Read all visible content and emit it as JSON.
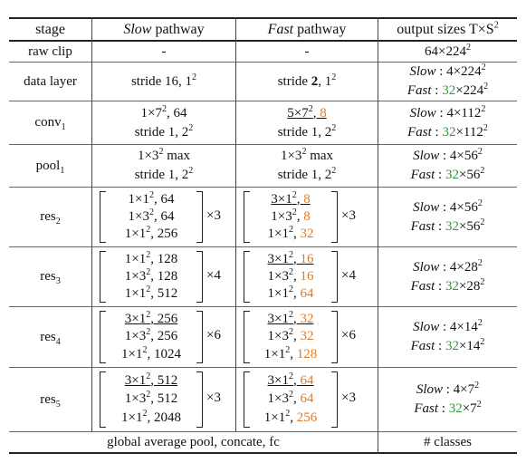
{
  "header": {
    "stage": "stage",
    "slow_italic": "Slow",
    "slow_rest": " pathway",
    "fast_italic": "Fast",
    "fast_rest": " pathway",
    "output": "output sizes T×S",
    "output_sup": "2"
  },
  "rows": {
    "raw": {
      "stage": "raw clip",
      "slow": "-",
      "fast": "-",
      "out_a": "64×224",
      "out_sup": "2"
    },
    "data": {
      "stage": "data layer",
      "slow_a": "stride 16, 1",
      "slow_sup": "2",
      "fast_a": "stride ",
      "fast_bold": "2",
      "fast_b": ", 1",
      "fast_sup": "2"
    },
    "conv1": {
      "stage": "conv",
      "stage_sub": "1",
      "slow_l1a": "1×7",
      "slow_l1sup": "2",
      "slow_l1b": ", 64",
      "slow_l2a": "stride 1, 2",
      "slow_l2sup": "2",
      "fast_l1a": "5×7",
      "fast_l1sup": "2",
      "fast_l1b": ", ",
      "fast_l1c": "8",
      "fast_l2a": "stride 1, 2",
      "fast_l2sup": "2"
    },
    "pool1": {
      "stage": "pool",
      "stage_sub": "1",
      "l1a": "1×3",
      "l1sup": "2",
      "l1b": " max",
      "l2a": "stride 1, 2",
      "l2sup": "2"
    },
    "res2": {
      "stage": "res",
      "stage_sub": "2",
      "slow": [
        "1×1",
        "1×3",
        "1×1"
      ],
      "slow_c": [
        ", 64",
        ", 64",
        ", 256"
      ],
      "slow_mult": "×3",
      "fast": [
        "3×1",
        "1×3",
        "1×1"
      ],
      "fast_c": [
        "8",
        "8",
        "32"
      ],
      "fast_mult": "×3"
    },
    "res3": {
      "stage": "res",
      "stage_sub": "3",
      "slow": [
        "1×1",
        "1×3",
        "1×1"
      ],
      "slow_c": [
        ", 128",
        ", 128",
        ", 512"
      ],
      "slow_mult": "×4",
      "fast": [
        "3×1",
        "1×3",
        "1×1"
      ],
      "fast_c": [
        "16",
        "16",
        "64"
      ],
      "fast_mult": "×4"
    },
    "res4": {
      "stage": "res",
      "stage_sub": "4",
      "slow": [
        "3×1",
        "1×3",
        "1×1"
      ],
      "slow_c": [
        ", 256",
        ", 256",
        ", 1024"
      ],
      "slow_mult": "×6",
      "fast": [
        "3×1",
        "1×3",
        "1×1"
      ],
      "fast_c": [
        "32",
        "32",
        "128"
      ],
      "fast_mult": "×6"
    },
    "res5": {
      "stage": "res",
      "stage_sub": "5",
      "slow": [
        "3×1",
        "1×3",
        "1×1"
      ],
      "slow_c": [
        ", 512",
        ", 512",
        ", 2048"
      ],
      "slow_mult": "×3",
      "fast": [
        "3×1",
        "1×3",
        "1×1"
      ],
      "fast_c": [
        "64",
        "64",
        "256"
      ],
      "fast_mult": "×3"
    },
    "final": {
      "left": "global average pool, concate, fc",
      "right": "# classes"
    }
  },
  "outputs": {
    "slow_label": "Slow",
    "fast_label": "Fast",
    "data": {
      "slow_a": " : 4×224",
      "fast_num": "32",
      "fast_a": "×224"
    },
    "conv1": {
      "slow_a": " : 4×112",
      "fast_num": "32",
      "fast_a": "×112"
    },
    "pool1": {
      "slow_a": " : 4×56",
      "fast_num": "32",
      "fast_a": "×56"
    },
    "res2": {
      "slow_a": " : 4×56",
      "fast_num": "32",
      "fast_a": "×56"
    },
    "res3": {
      "slow_a": " : 4×28",
      "fast_num": "32",
      "fast_a": "×28"
    },
    "res4": {
      "slow_a": " : 4×14",
      "fast_num": "32",
      "fast_a": "×14"
    },
    "res5": {
      "slow_a": " : 4×7",
      "fast_num": "32",
      "fast_a": "×7"
    },
    "sup": "2",
    "fast_colon": " : "
  },
  "colors": {
    "orange": "#e07a22",
    "green": "#2e9a3a"
  }
}
